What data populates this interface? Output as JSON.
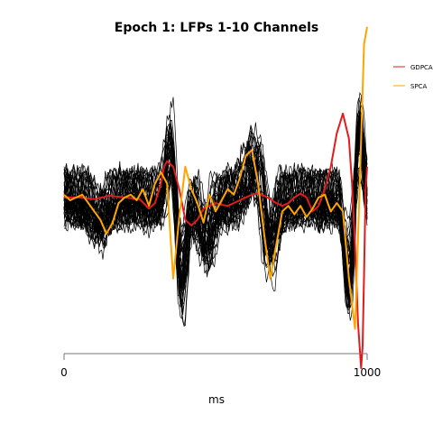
{
  "chart_data": {
    "type": "line",
    "title": "Epoch 1: LFPs 1-10 Channels",
    "xlabel": "ms",
    "ylabel": "",
    "xlim": [
      0,
      1000
    ],
    "x_ticks": [
      "0",
      "1000"
    ],
    "legend_placement": "top-right",
    "grid": false,
    "series": [
      {
        "name": "GDPCA",
        "color": "#e41a1c",
        "x": [
          0,
          50,
          100,
          150,
          200,
          250,
          280,
          300,
          320,
          330,
          340,
          360,
          380,
          400,
          420,
          440,
          460,
          480,
          500,
          520,
          540,
          560,
          580,
          600,
          620,
          640,
          660,
          680,
          700,
          720,
          740,
          760,
          780,
          800,
          820,
          840,
          860,
          880,
          900,
          920,
          940,
          950,
          960,
          970,
          980,
          985,
          990,
          995,
          1000
        ],
        "y": [
          0.05,
          0.05,
          0.02,
          0.08,
          0.05,
          0.02,
          -0.15,
          -0.05,
          0.3,
          0.6,
          0.7,
          0.6,
          0.2,
          -0.35,
          -0.45,
          -0.35,
          -0.15,
          -0.1,
          -0.05,
          -0.08,
          -0.1,
          -0.05,
          0.0,
          0.05,
          0.1,
          0.12,
          0.08,
          0.02,
          -0.05,
          -0.1,
          -0.05,
          0.05,
          0.12,
          0.05,
          -0.2,
          -0.1,
          0.2,
          0.6,
          1.2,
          1.55,
          1.1,
          0.3,
          -0.8,
          -2.2,
          -3.0,
          -2.6,
          -1.3,
          0.2,
          0.6
        ]
      },
      {
        "name": "SPCA",
        "color": "#ffa500",
        "x": [
          0,
          20,
          40,
          60,
          80,
          100,
          120,
          140,
          160,
          180,
          200,
          220,
          240,
          260,
          280,
          300,
          320,
          340,
          360,
          380,
          400,
          420,
          440,
          460,
          480,
          500,
          520,
          540,
          560,
          580,
          600,
          620,
          640,
          660,
          680,
          700,
          720,
          740,
          760,
          780,
          800,
          820,
          840,
          860,
          880,
          900,
          920,
          940,
          960,
          975,
          990,
          1000
        ],
        "y": [
          0.1,
          0.0,
          0.05,
          0.1,
          -0.05,
          -0.2,
          -0.35,
          -0.6,
          -0.4,
          -0.05,
          0.05,
          0.1,
          0.0,
          0.2,
          -0.1,
          0.3,
          0.5,
          0.3,
          -1.4,
          -0.3,
          0.6,
          0.2,
          -0.05,
          -0.4,
          0.1,
          -0.2,
          0.0,
          0.2,
          0.1,
          0.4,
          0.8,
          0.9,
          0.3,
          -0.6,
          -1.4,
          -0.8,
          -0.2,
          -0.1,
          -0.25,
          -0.1,
          -0.3,
          -0.15,
          0.05,
          0.1,
          -0.2,
          -0.05,
          -0.2,
          -1.4,
          -2.3,
          0.2,
          2.8,
          3.1
        ]
      }
    ],
    "black_trace_count": 40
  }
}
